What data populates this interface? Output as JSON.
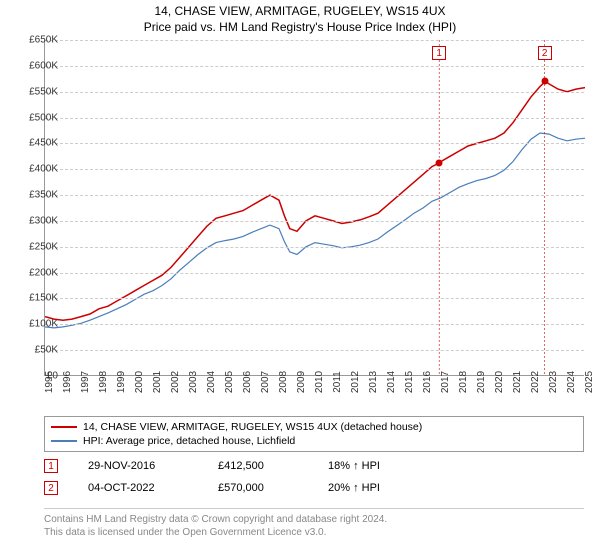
{
  "title": "14, CHASE VIEW, ARMITAGE, RUGELEY, WS15 4UX",
  "subtitle": "Price paid vs. HM Land Registry's House Price Index (HPI)",
  "chart": {
    "type": "line",
    "background_color": "#ffffff",
    "grid_color": "#cccccc",
    "axis_color": "#999999",
    "ylabel_fontsize": 10,
    "xlabel_fontsize": 10,
    "ylim": [
      0,
      650000
    ],
    "ytick_step": 50000,
    "yticks": [
      "£0",
      "£50K",
      "£100K",
      "£150K",
      "£200K",
      "£250K",
      "£300K",
      "£350K",
      "£400K",
      "£450K",
      "£500K",
      "£550K",
      "£600K",
      "£650K"
    ],
    "xyears": [
      1995,
      1996,
      1997,
      1998,
      1999,
      2000,
      2001,
      2002,
      2003,
      2004,
      2005,
      2006,
      2007,
      2008,
      2009,
      2010,
      2011,
      2012,
      2013,
      2014,
      2015,
      2016,
      2017,
      2018,
      2019,
      2020,
      2021,
      2022,
      2023,
      2024,
      2025
    ],
    "series": [
      {
        "name": "14, CHASE VIEW, ARMITAGE, RUGELEY, WS15 4UX (detached house)",
        "color": "#cc0000",
        "width": 1.5,
        "points": [
          [
            1995.0,
            115
          ],
          [
            1995.5,
            110
          ],
          [
            1996.0,
            108
          ],
          [
            1996.5,
            110
          ],
          [
            1997.0,
            115
          ],
          [
            1997.5,
            120
          ],
          [
            1998.0,
            130
          ],
          [
            1998.5,
            135
          ],
          [
            1999.0,
            145
          ],
          [
            1999.5,
            155
          ],
          [
            2000.0,
            165
          ],
          [
            2000.5,
            175
          ],
          [
            2001.0,
            185
          ],
          [
            2001.5,
            195
          ],
          [
            2002.0,
            210
          ],
          [
            2002.5,
            230
          ],
          [
            2003.0,
            250
          ],
          [
            2003.5,
            270
          ],
          [
            2004.0,
            290
          ],
          [
            2004.5,
            305
          ],
          [
            2005.0,
            310
          ],
          [
            2005.5,
            315
          ],
          [
            2006.0,
            320
          ],
          [
            2006.5,
            330
          ],
          [
            2007.0,
            340
          ],
          [
            2007.5,
            350
          ],
          [
            2008.0,
            340
          ],
          [
            2008.3,
            310
          ],
          [
            2008.6,
            285
          ],
          [
            2009.0,
            280
          ],
          [
            2009.5,
            300
          ],
          [
            2010.0,
            310
          ],
          [
            2010.5,
            305
          ],
          [
            2011.0,
            300
          ],
          [
            2011.5,
            295
          ],
          [
            2012.0,
            298
          ],
          [
            2012.5,
            302
          ],
          [
            2013.0,
            308
          ],
          [
            2013.5,
            315
          ],
          [
            2014.0,
            330
          ],
          [
            2014.5,
            345
          ],
          [
            2015.0,
            360
          ],
          [
            2015.5,
            375
          ],
          [
            2016.0,
            390
          ],
          [
            2016.5,
            405
          ],
          [
            2016.9,
            412
          ],
          [
            2017.0,
            415
          ],
          [
            2017.5,
            425
          ],
          [
            2018.0,
            435
          ],
          [
            2018.5,
            445
          ],
          [
            2019.0,
            450
          ],
          [
            2019.5,
            455
          ],
          [
            2020.0,
            460
          ],
          [
            2020.5,
            470
          ],
          [
            2021.0,
            490
          ],
          [
            2021.5,
            515
          ],
          [
            2022.0,
            540
          ],
          [
            2022.5,
            560
          ],
          [
            2022.8,
            570
          ],
          [
            2023.0,
            565
          ],
          [
            2023.5,
            555
          ],
          [
            2024.0,
            550
          ],
          [
            2024.5,
            555
          ],
          [
            2025.0,
            558
          ]
        ]
      },
      {
        "name": "HPI: Average price, detached house, Lichfield",
        "color": "#4a7ebb",
        "width": 1.2,
        "points": [
          [
            1995.0,
            95
          ],
          [
            1995.5,
            93
          ],
          [
            1996.0,
            95
          ],
          [
            1996.5,
            98
          ],
          [
            1997.0,
            102
          ],
          [
            1997.5,
            108
          ],
          [
            1998.0,
            115
          ],
          [
            1998.5,
            122
          ],
          [
            1999.0,
            130
          ],
          [
            1999.5,
            138
          ],
          [
            2000.0,
            148
          ],
          [
            2000.5,
            158
          ],
          [
            2001.0,
            165
          ],
          [
            2001.5,
            175
          ],
          [
            2002.0,
            188
          ],
          [
            2002.5,
            205
          ],
          [
            2003.0,
            220
          ],
          [
            2003.5,
            235
          ],
          [
            2004.0,
            248
          ],
          [
            2004.5,
            258
          ],
          [
            2005.0,
            262
          ],
          [
            2005.5,
            265
          ],
          [
            2006.0,
            270
          ],
          [
            2006.5,
            278
          ],
          [
            2007.0,
            285
          ],
          [
            2007.5,
            292
          ],
          [
            2008.0,
            285
          ],
          [
            2008.3,
            260
          ],
          [
            2008.6,
            240
          ],
          [
            2009.0,
            235
          ],
          [
            2009.5,
            250
          ],
          [
            2010.0,
            258
          ],
          [
            2010.5,
            255
          ],
          [
            2011.0,
            252
          ],
          [
            2011.5,
            248
          ],
          [
            2012.0,
            250
          ],
          [
            2012.5,
            253
          ],
          [
            2013.0,
            258
          ],
          [
            2013.5,
            265
          ],
          [
            2014.0,
            278
          ],
          [
            2014.5,
            290
          ],
          [
            2015.0,
            302
          ],
          [
            2015.5,
            315
          ],
          [
            2016.0,
            325
          ],
          [
            2016.5,
            338
          ],
          [
            2017.0,
            345
          ],
          [
            2017.5,
            355
          ],
          [
            2018.0,
            365
          ],
          [
            2018.5,
            372
          ],
          [
            2019.0,
            378
          ],
          [
            2019.5,
            382
          ],
          [
            2020.0,
            388
          ],
          [
            2020.5,
            398
          ],
          [
            2021.0,
            415
          ],
          [
            2021.5,
            438
          ],
          [
            2022.0,
            458
          ],
          [
            2022.5,
            470
          ],
          [
            2023.0,
            468
          ],
          [
            2023.5,
            460
          ],
          [
            2024.0,
            455
          ],
          [
            2024.5,
            458
          ],
          [
            2025.0,
            460
          ]
        ]
      }
    ],
    "markers": [
      {
        "label": "1",
        "year": 2016.9,
        "value": 412.5
      },
      {
        "label": "2",
        "year": 2022.76,
        "value": 570
      }
    ]
  },
  "legend": {
    "border_color": "#999999",
    "items": [
      {
        "color": "#cc0000",
        "label": "14, CHASE VIEW, ARMITAGE, RUGELEY, WS15 4UX (detached house)"
      },
      {
        "color": "#4a7ebb",
        "label": "HPI: Average price, detached house, Lichfield"
      }
    ]
  },
  "sales": [
    {
      "num": "1",
      "date": "29-NOV-2016",
      "price": "£412,500",
      "delta": "18% ↑ HPI"
    },
    {
      "num": "2",
      "date": "04-OCT-2022",
      "price": "£570,000",
      "delta": "20% ↑ HPI"
    }
  ],
  "footer_line1": "Contains HM Land Registry data © Crown copyright and database right 2024.",
  "footer_line2": "This data is licensed under the Open Government Licence v3.0."
}
